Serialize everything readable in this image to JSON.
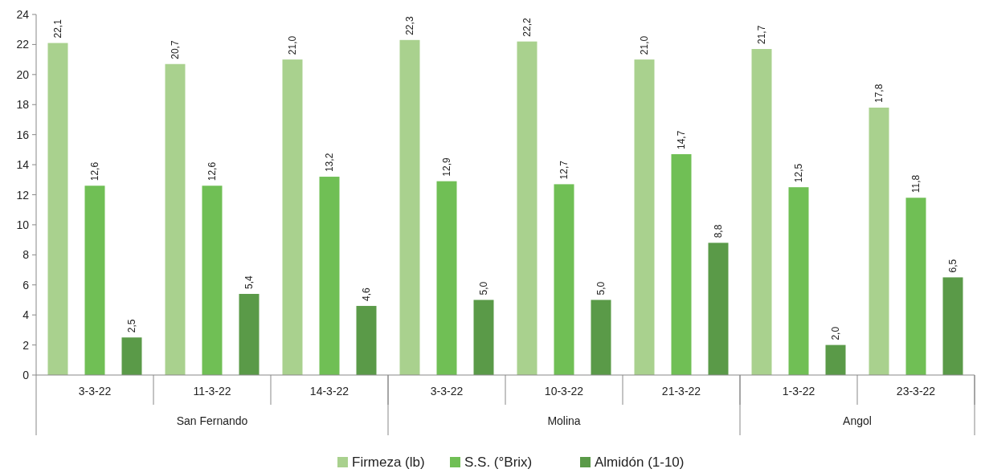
{
  "chart_data": {
    "type": "bar",
    "categories": [
      "3-3-22",
      "11-3-22",
      "14-3-22",
      "3-3-22",
      "10-3-22",
      "21-3-22",
      "1-3-22",
      "23-3-22"
    ],
    "series": [
      {
        "name": "Firmeza (lb)",
        "color": "#a9d18e",
        "values": [
          22.1,
          20.7,
          21.0,
          22.3,
          22.2,
          21.0,
          21.7,
          17.8
        ],
        "value_labels": [
          "22,1",
          "20,7",
          "21,0",
          "22,3",
          "22,2",
          "21,0",
          "21,7",
          "17,8"
        ]
      },
      {
        "name": "S.S. (°Brix)",
        "color": "#70bf55",
        "values": [
          12.6,
          12.6,
          13.2,
          12.9,
          12.7,
          14.7,
          12.5,
          11.8
        ],
        "value_labels": [
          "12,6",
          "12,6",
          "13,2",
          "12,9",
          "12,7",
          "14,7",
          "12,5",
          "11,8"
        ]
      },
      {
        "name": "Almidón (1-10)",
        "color": "#5a9a48",
        "values": [
          2.5,
          5.4,
          4.6,
          5.0,
          5.0,
          8.8,
          2.0,
          6.5
        ],
        "value_labels": [
          "2,5",
          "5,4",
          "4,6",
          "5,0",
          "5,0",
          "8,8",
          "2,0",
          "6,5"
        ]
      }
    ],
    "annotations": [
      "San Fernando",
      "Molina",
      "Angol"
    ],
    "ylim": [
      0,
      24
    ],
    "yticks": [
      0,
      2,
      4,
      6,
      8,
      10,
      12,
      14,
      16,
      18,
      20,
      22,
      24
    ],
    "legend": "bottom",
    "grid": false
  }
}
